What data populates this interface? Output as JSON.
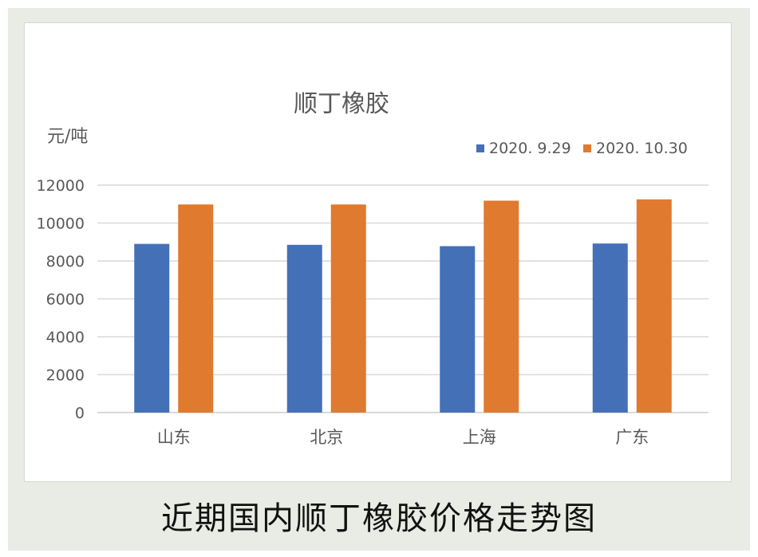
{
  "caption": "近期国内顺丁橡胶价格走势图",
  "colors": {
    "series1": "#4470b8",
    "series2": "#e07a2e",
    "grid": "#d9d9d9",
    "text": "#595959"
  },
  "chart_data": {
    "type": "bar",
    "title": "顺丁橡胶",
    "ylabel": "元/吨",
    "xlabel": "",
    "categories": [
      "山东",
      "北京",
      "上海",
      "广东"
    ],
    "series": [
      {
        "name": "2020. 9.29",
        "values": [
          8900,
          8850,
          8780,
          8920
        ]
      },
      {
        "name": "2020. 10.30",
        "values": [
          10980,
          10980,
          11180,
          11250
        ]
      }
    ],
    "ylim": [
      0,
      12000
    ],
    "yticks": [
      "0",
      "2000",
      "4000",
      "6000",
      "8000",
      "10000",
      "12000"
    ],
    "grid": true,
    "legend_position": "top-right"
  }
}
